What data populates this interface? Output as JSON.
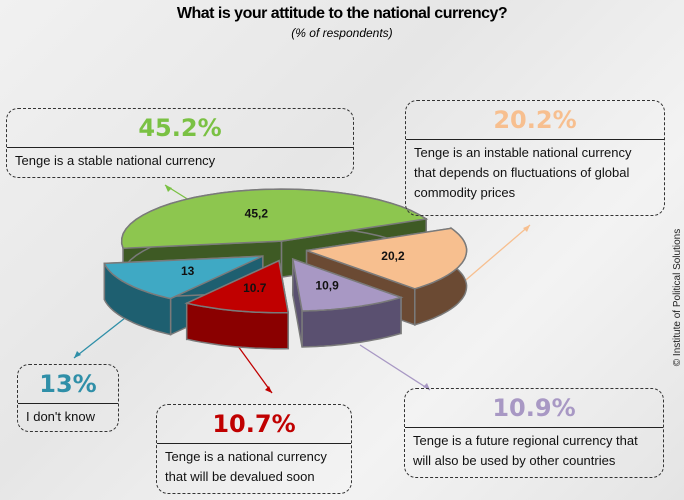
{
  "chart_data": {
    "type": "pie",
    "title": "What is your attitude to the national currency?",
    "subtitle": "(% of respondents)",
    "slices": [
      {
        "value": 45.2,
        "label": "45,2",
        "pct": "45.2%",
        "desc": "Tenge is a stable national currency",
        "color": "#8dc64f",
        "side": "#3e5a24"
      },
      {
        "value": 20.2,
        "label": "20,2",
        "pct": "20.2%",
        "desc": "Tenge is an instable national currency that depends on fluctuations of global commodity prices",
        "color": "#f7bf8f",
        "side": "#6b4a33"
      },
      {
        "value": 10.9,
        "label": "10,9",
        "pct": "10.9%",
        "desc": "Tenge is a future regional currency that will also be used by other countries",
        "color": "#a898c4",
        "side": "#5a5070"
      },
      {
        "value": 10.7,
        "label": "10.7",
        "pct": "10.7%",
        "desc": "Tenge is a national currency that will be devalued soon",
        "color": "#c00000",
        "side": "#8a0000"
      },
      {
        "value": 13,
        "label": "13",
        "pct": "13%",
        "desc": "I don't know",
        "color": "#3fa9c4",
        "side": "#1e5f70"
      }
    ],
    "pct_colors": [
      "#7ac143",
      "#f7bf8f",
      "#a898c4",
      "#c00000",
      "#2f8fa8"
    ]
  },
  "credit": "© Institute of Political Solutions"
}
